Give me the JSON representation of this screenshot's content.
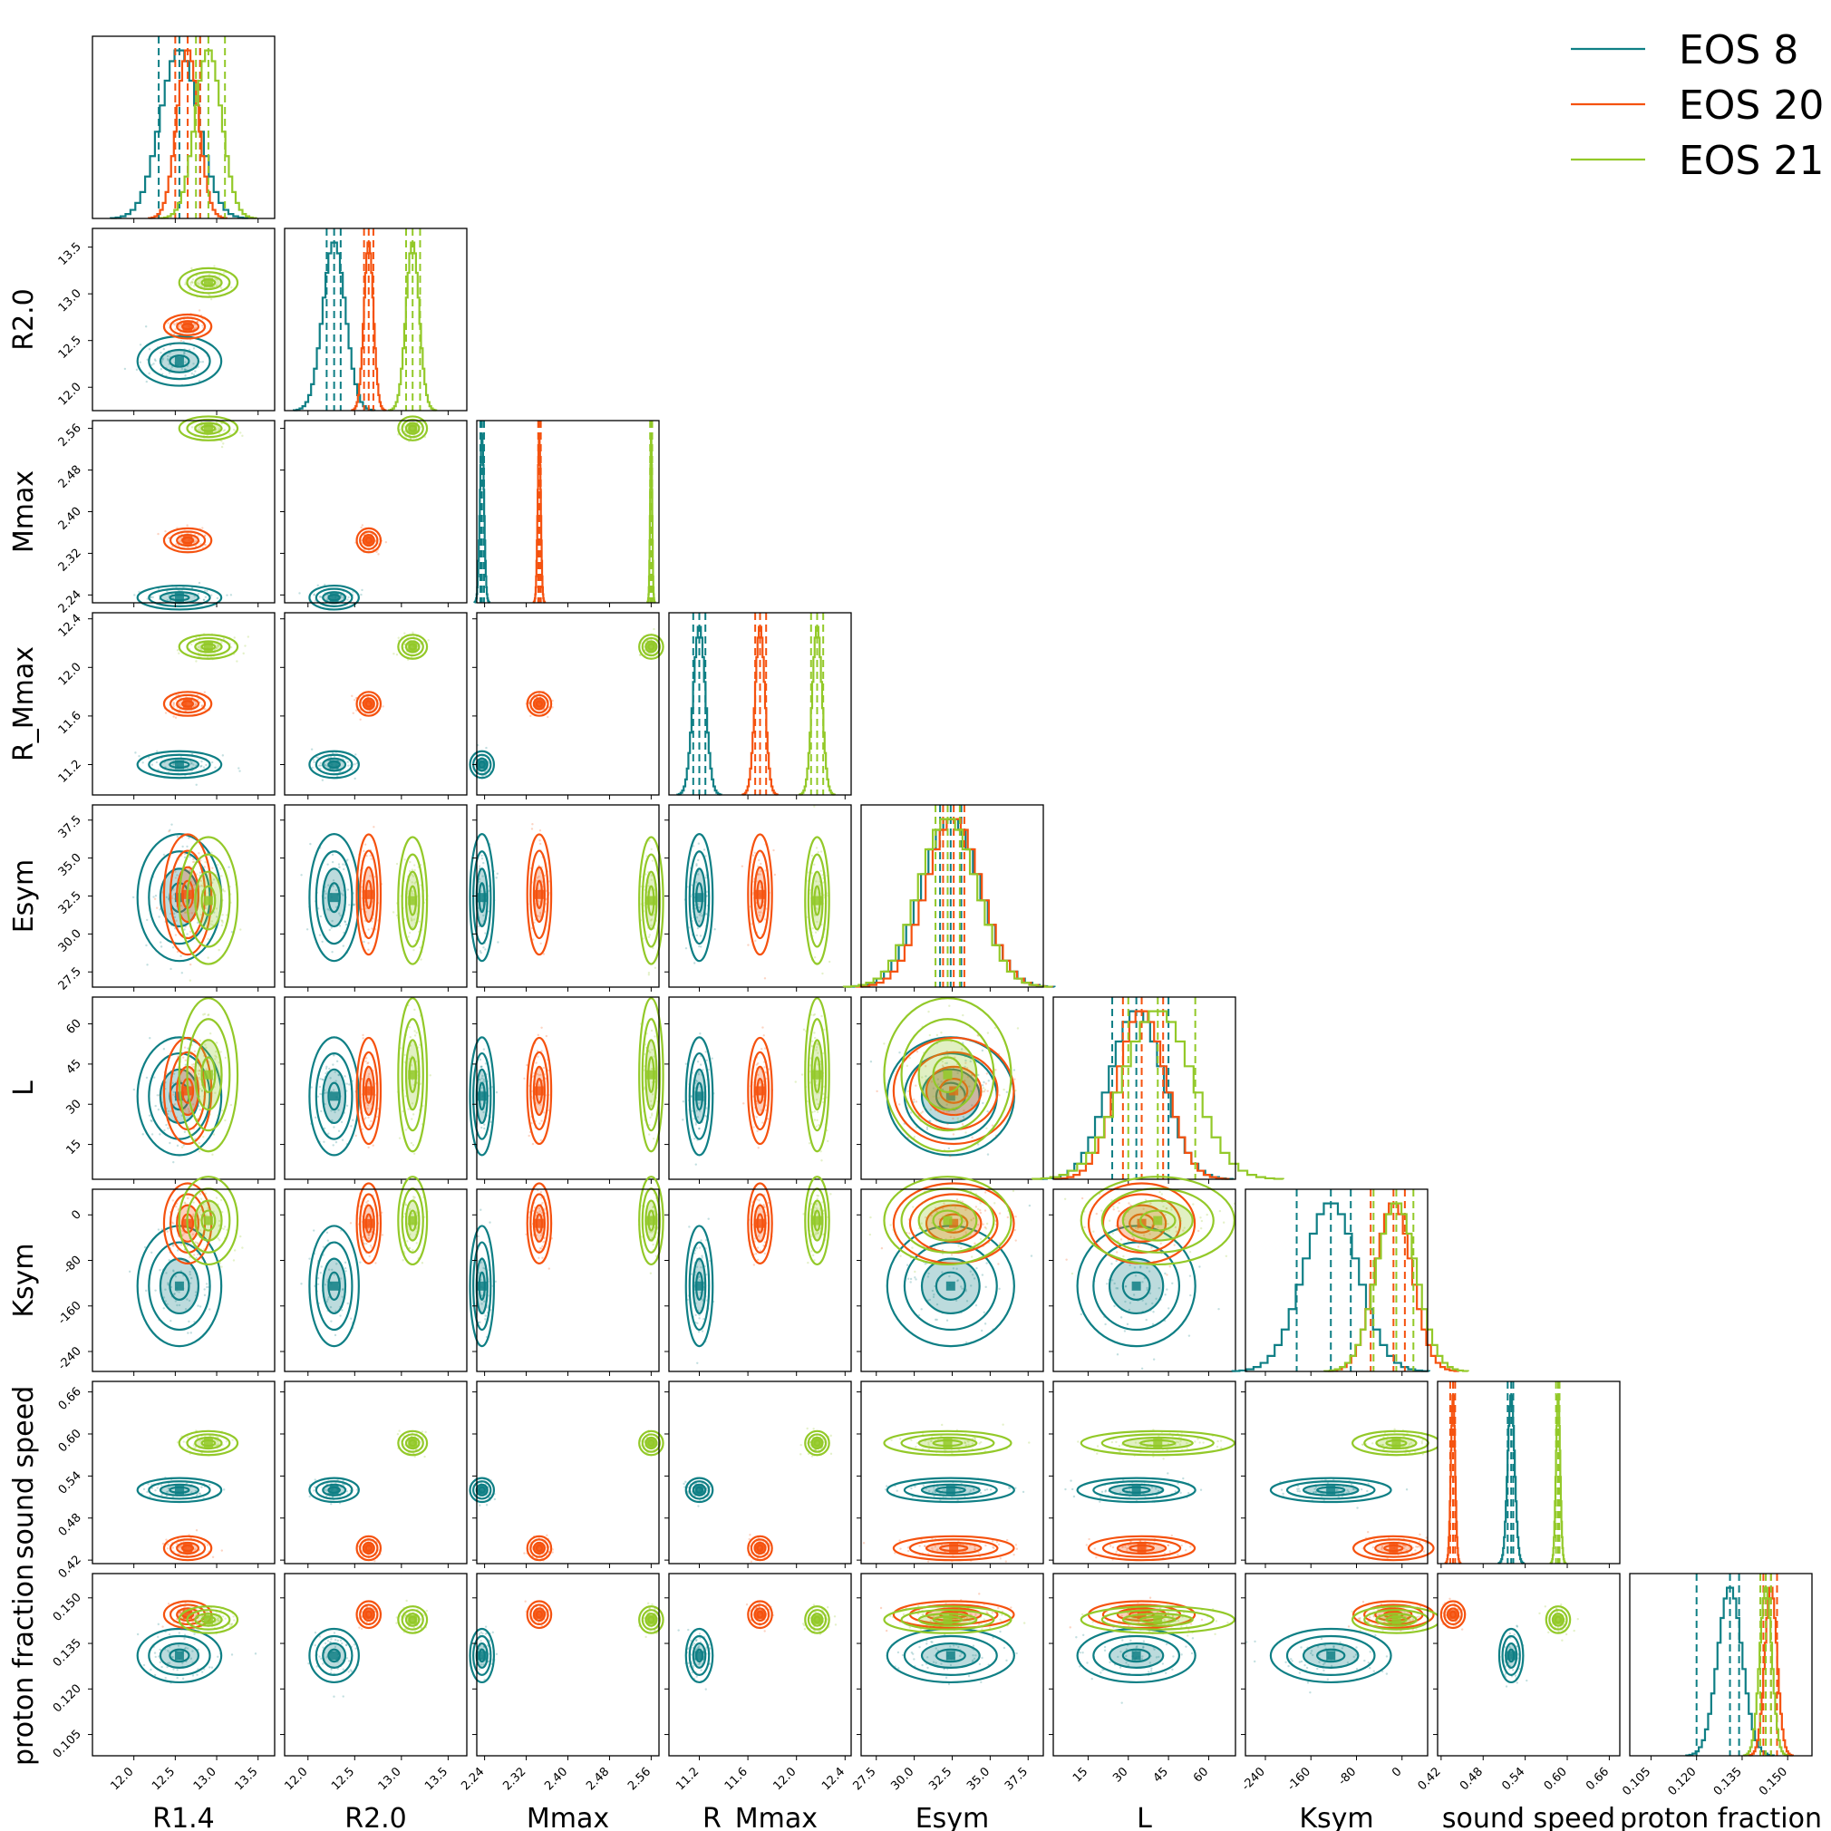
{
  "chart_data": {
    "type": "corner-plot",
    "parameters": [
      "R1.4",
      "R2.0",
      "Mmax",
      "R_Mmax",
      "Esym",
      "L",
      "Ksym",
      "sound speed",
      "proton fraction"
    ],
    "ticks": [
      [
        "12.0",
        "12.5",
        "13.0",
        "13.5"
      ],
      [
        "12.0",
        "12.5",
        "13.0",
        "13.5"
      ],
      [
        "2.24",
        "2.32",
        "2.40",
        "2.48",
        "2.56"
      ],
      [
        "11.2",
        "11.6",
        "12.0",
        "12.4"
      ],
      [
        "27.5",
        "30.0",
        "32.5",
        "35.0",
        "37.5"
      ],
      [
        "15",
        "30",
        "45",
        "60"
      ],
      [
        "-240",
        "-160",
        "-80",
        "0"
      ],
      [
        "0.42",
        "0.48",
        "0.54",
        "0.60",
        "0.66"
      ],
      [
        "0.105",
        "0.120",
        "0.135",
        "0.150"
      ]
    ],
    "tick_values": [
      [
        12.0,
        12.5,
        13.0,
        13.5
      ],
      [
        12.0,
        12.5,
        13.0,
        13.5
      ],
      [
        2.24,
        2.32,
        2.4,
        2.48,
        2.56
      ],
      [
        11.2,
        11.6,
        12.0,
        12.4
      ],
      [
        27.5,
        30.0,
        32.5,
        35.0,
        37.5
      ],
      [
        15,
        30,
        45,
        60
      ],
      [
        -240,
        -160,
        -80,
        0
      ],
      [
        0.42,
        0.48,
        0.54,
        0.6,
        0.66
      ],
      [
        0.105,
        0.12,
        0.135,
        0.15
      ]
    ],
    "ranges": [
      [
        11.5,
        13.7
      ],
      [
        11.75,
        13.7
      ],
      [
        2.225,
        2.575
      ],
      [
        10.95,
        12.45
      ],
      [
        26.5,
        38.5
      ],
      [
        2,
        70
      ],
      [
        -275,
        45
      ],
      [
        0.415,
        0.675
      ],
      [
        0.098,
        0.158
      ]
    ],
    "series": [
      {
        "name": "EOS 8",
        "color": "#0f7f85",
        "means": [
          12.55,
          12.28,
          2.235,
          11.2,
          32.4,
          33,
          -125,
          0.52,
          0.131
        ],
        "sds": [
          0.23,
          0.12,
          0.004,
          0.05,
          1.9,
          10,
          48,
          0.005,
          0.004
        ],
        "quantiles": [
          [
            12.3,
            12.55,
            12.8
          ],
          [
            12.2,
            12.28,
            12.35
          ],
          [
            2.232,
            2.235,
            2.239
          ],
          [
            11.15,
            11.2,
            11.25
          ],
          [
            31.7,
            32.4,
            33.1
          ],
          [
            24,
            33,
            45
          ],
          [
            -185,
            -125,
            -90
          ],
          [
            0.515,
            0.52,
            0.523
          ],
          [
            0.12,
            0.131,
            0.134
          ]
        ]
      },
      {
        "name": "EOS 20",
        "color": "#f5520f",
        "means": [
          12.65,
          12.65,
          2.345,
          11.7,
          32.6,
          35,
          -15,
          0.437,
          0.1445
        ],
        "sds": [
          0.13,
          0.05,
          0.003,
          0.04,
          1.8,
          9,
          32,
          0.003,
          0.002
        ],
        "quantiles": [
          [
            12.5,
            12.65,
            12.8
          ],
          [
            12.6,
            12.65,
            12.7
          ],
          [
            2.343,
            2.345,
            2.348
          ],
          [
            11.66,
            11.7,
            11.75
          ],
          [
            31.9,
            32.6,
            33.3
          ],
          [
            28,
            35,
            43
          ],
          [
            -55,
            -15,
            5
          ],
          [
            0.433,
            0.437,
            0.44
          ],
          [
            0.142,
            0.1445,
            0.1465
          ]
        ]
      },
      {
        "name": "EOS 21",
        "color": "#93c929",
        "means": [
          12.9,
          13.12,
          2.56,
          12.17,
          32.2,
          41,
          -10,
          0.587,
          0.1428
        ],
        "sds": [
          0.16,
          0.07,
          0.002,
          0.04,
          1.9,
          13,
          35,
          0.003,
          0.002
        ],
        "quantiles": [
          [
            12.75,
            12.9,
            13.1
          ],
          [
            13.05,
            13.12,
            13.2
          ],
          [
            2.558,
            2.56,
            2.562
          ],
          [
            12.12,
            12.17,
            12.22
          ],
          [
            31.4,
            32.2,
            33.0
          ],
          [
            30,
            41,
            55
          ],
          [
            -50,
            -10,
            20
          ],
          [
            0.584,
            0.587,
            0.589
          ],
          [
            0.141,
            0.1428,
            0.1445
          ]
        ]
      }
    ],
    "legend_position": "top-right"
  }
}
